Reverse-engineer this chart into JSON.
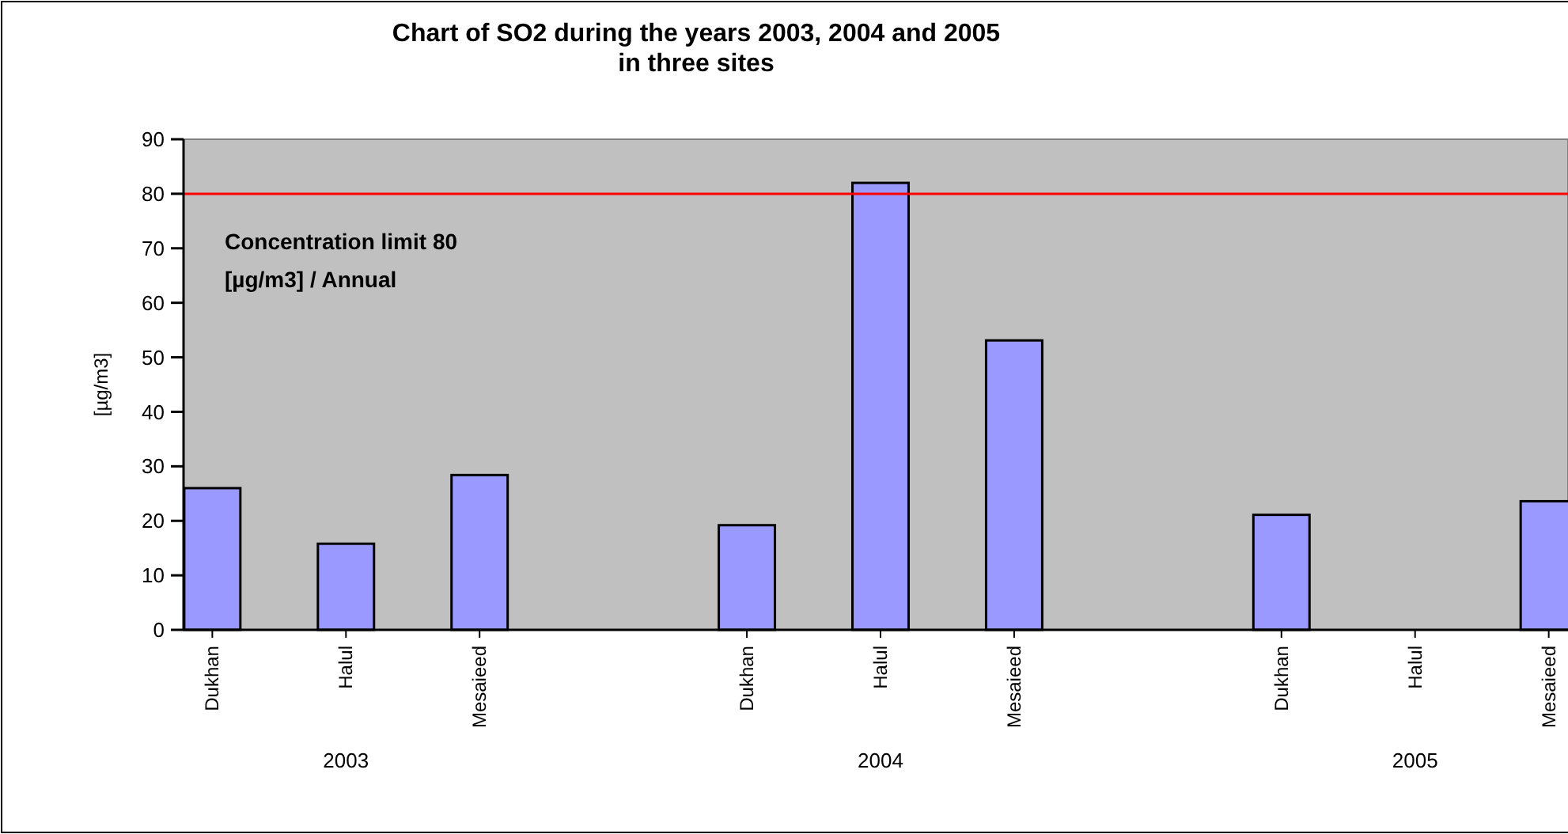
{
  "chart_data": {
    "type": "bar",
    "title": "Chart of SO2 during the years 2003, 2004 and 2005\nin three sites",
    "ylabel": "[µg/m3]",
    "categories": [
      "Dukhan",
      "Halul",
      "Mesaieed",
      null,
      "Dukhan",
      "Halul",
      "Mesaieed",
      null,
      "Dukhan",
      "Halul",
      "Mesaieed"
    ],
    "values": [
      26,
      15.8,
      28.4,
      null,
      19.2,
      82,
      53.1,
      null,
      21.1,
      null,
      23.6
    ],
    "color": "#9999ff",
    "ylim": [
      0,
      90
    ],
    "yticks": [
      0,
      10,
      20,
      30,
      40,
      50,
      60,
      70,
      80,
      90
    ],
    "ref_lines": [
      {
        "axis": "y",
        "value": 80,
        "label": "Concentration limit 80\n[µg/m3] / Annual",
        "color": "#ff0000"
      }
    ],
    "annotations": [
      "2003",
      "2004",
      "2005"
    ]
  }
}
